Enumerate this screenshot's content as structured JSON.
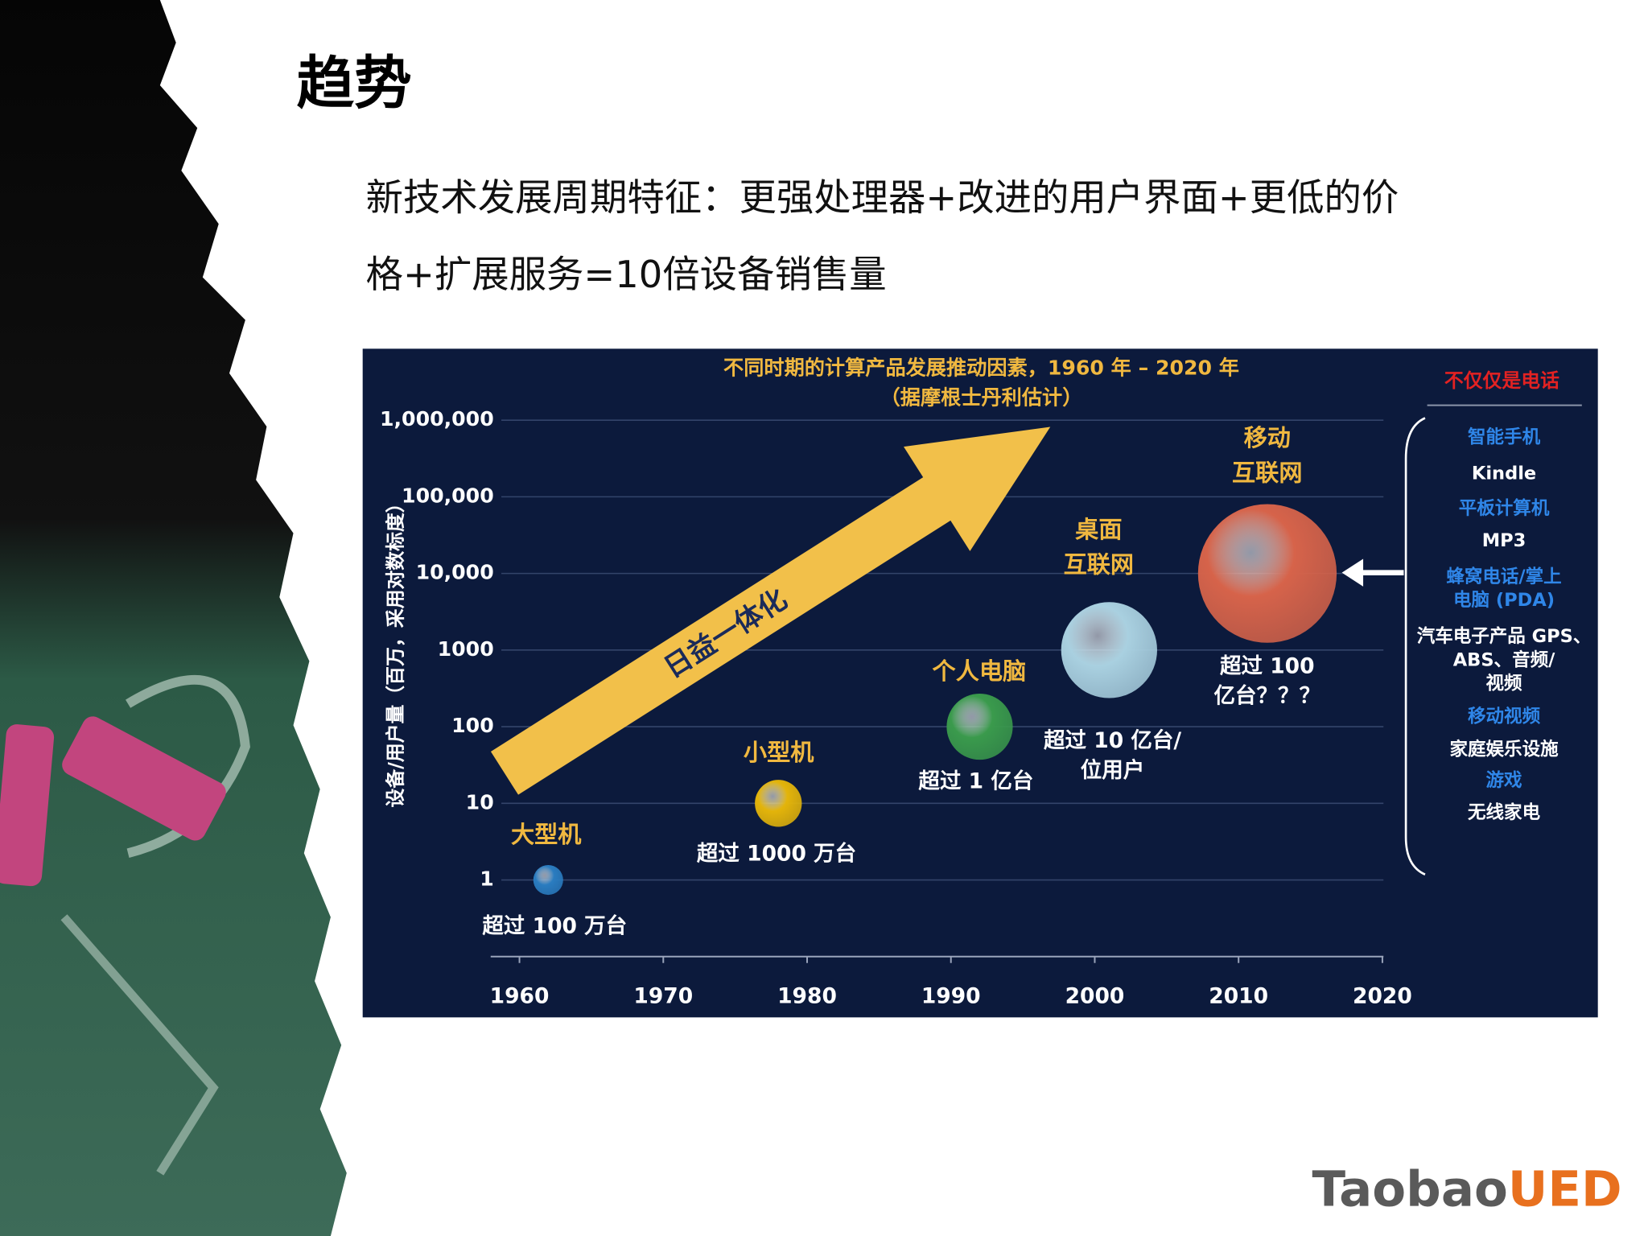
{
  "slide": {
    "title": "趋势",
    "body": [
      "新技术发展周期特征：更强处理器+改进的用户界面+更低的价",
      "格+扩展服务=10倍设备销售量"
    ]
  },
  "chart_data": {
    "type": "bubble",
    "title": [
      "不同时期的计算产品发展推动因素，1960 年 – 2020 年",
      "（据摩根士丹利估计）"
    ],
    "y_label": "设备/用户量（百万，采用对数标度）",
    "arrow_label": "日益一体化",
    "x": [
      1962,
      1978,
      1992,
      2001,
      2012
    ],
    "values": [
      1,
      10,
      100,
      1000,
      10000
    ],
    "sizes": [
      14,
      22,
      31,
      45,
      65
    ],
    "colors": [
      "#2a7cc0",
      "#e3b40a",
      "#3a9a4c",
      "#a9d0e0",
      "#d6634a"
    ],
    "names": [
      [
        "大型机"
      ],
      [
        "小型机"
      ],
      [
        "个人电脑"
      ],
      [
        "桌面",
        "互联网"
      ],
      [
        "移动",
        "互联网"
      ]
    ],
    "annotations": [
      [
        "超过 100 万台"
      ],
      [
        "超过 1000 万台"
      ],
      [
        "超过 1 亿台"
      ],
      [
        "超过 10 亿台/",
        "位用户"
      ],
      [
        "超过 100",
        "亿台？？？"
      ]
    ],
    "xlim": [
      1960,
      2020
    ],
    "xticks": [
      1960,
      1970,
      1980,
      1990,
      2000,
      2010,
      2020
    ],
    "ylim": [
      0.1,
      1000000
    ],
    "yticks": [
      1,
      10,
      100,
      1000,
      {
        "value": 10000,
        "label": "10,000"
      },
      {
        "value": 100000,
        "label": "100,000"
      },
      {
        "value": 1000000,
        "label": "1,000,000"
      }
    ],
    "log_scale_y": true,
    "grid": true
  },
  "side_panel": {
    "title": "不仅仅是电话",
    "items": [
      {
        "lines": [
          "智能手机"
        ],
        "color": "#2f86e8"
      },
      {
        "lines": [
          "Kindle"
        ],
        "color": "#ffffff"
      },
      {
        "lines": [
          "平板计算机"
        ],
        "color": "#2f86e8"
      },
      {
        "lines": [
          "MP3"
        ],
        "color": "#ffffff"
      },
      {
        "lines": [
          "蜂窝电话/掌上",
          "电脑 (PDA)"
        ],
        "color": "#2f86e8"
      },
      {
        "lines": [
          "汽车电子产品 GPS、",
          "ABS、音频/",
          "视频"
        ],
        "color": "#ffffff"
      },
      {
        "lines": [
          "移动视频"
        ],
        "color": "#2f86e8"
      },
      {
        "lines": [
          "家庭娱乐设施"
        ],
        "color": "#ffffff"
      },
      {
        "lines": [
          "游戏"
        ],
        "color": "#2f86e8"
      },
      {
        "lines": [
          "无线家电"
        ],
        "color": "#ffffff"
      }
    ]
  },
  "logo": {
    "brand": "Taobao",
    "suffix": "UED"
  }
}
